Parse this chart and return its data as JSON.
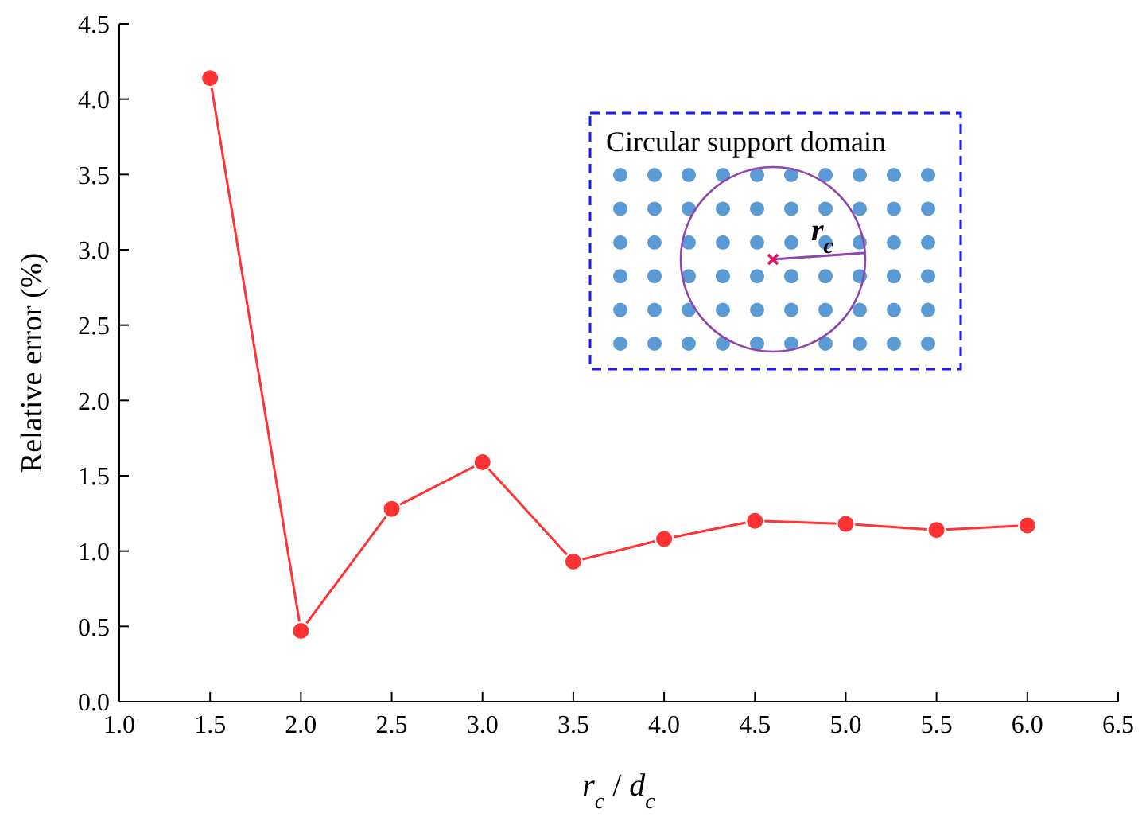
{
  "chart_data": {
    "type": "line",
    "xlabel": "r$_{c}$ / d$_{c}$",
    "ylabel": "Relative error (%)",
    "x": [
      1.5,
      2.0,
      2.5,
      3.0,
      3.5,
      4.0,
      4.5,
      5.0,
      5.5,
      6.0
    ],
    "series": [
      {
        "color": "#ff3333",
        "values": [
          4.14,
          0.47,
          1.28,
          1.59,
          0.93,
          1.08,
          1.2,
          1.18,
          1.14,
          1.17
        ]
      }
    ],
    "xlim": [
      1.0,
      6.5
    ],
    "xticks": [
      {
        "value": 1,
        "label": "1.0"
      },
      {
        "value": 1.5,
        "label": "1.5"
      },
      {
        "value": 2,
        "label": "2.0"
      },
      {
        "value": 2.5,
        "label": "2.5"
      },
      {
        "value": 3,
        "label": "3.0"
      },
      {
        "value": 3.5,
        "label": "3.5"
      },
      {
        "value": 4,
        "label": "4.0"
      },
      {
        "value": 4.5,
        "label": "4.5"
      },
      {
        "value": 5,
        "label": "5.0"
      },
      {
        "value": 5.5,
        "label": "5.5"
      },
      {
        "value": 6,
        "label": "6.0"
      },
      {
        "value": 6.5,
        "label": "6.5"
      }
    ],
    "ylim": [
      0,
      4.5
    ],
    "yticks": [
      {
        "value": 0,
        "label": "0.0"
      },
      {
        "value": 0.5,
        "label": "0.5"
      },
      {
        "value": 1,
        "label": "1.0"
      },
      {
        "value": 1.5,
        "label": "1.5"
      },
      {
        "value": 2,
        "label": "2.0"
      },
      {
        "value": 2.5,
        "label": "2.5"
      },
      {
        "value": 3,
        "label": "3.0"
      },
      {
        "value": 3.5,
        "label": "3.5"
      },
      {
        "value": 4,
        "label": "4.0"
      },
      {
        "value": 4.5,
        "label": "4.5"
      }
    ],
    "annotations": [
      "Circular support domain",
      "r$_{c}$"
    ],
    "marker": "circle",
    "line_style": "solid",
    "grid": false,
    "legend": false
  }
}
